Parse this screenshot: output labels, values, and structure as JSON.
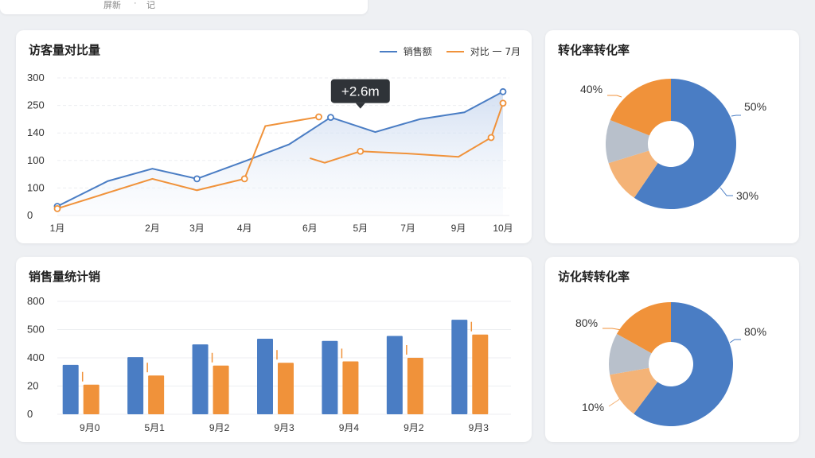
{
  "topbar": {
    "crumbs": [
      "屏新",
      "·",
      "记"
    ]
  },
  "colors": {
    "blue": "#4a7dc4",
    "orange": "#f0923a",
    "grey": "#b8c0cb",
    "light_orange": "#f4b377"
  },
  "line_card": {
    "title": "访客量对比量",
    "legend": [
      {
        "label": "销售额",
        "color": "#4a7dc4"
      },
      {
        "label": "对比 一 7月",
        "color": "#f0923a"
      }
    ],
    "tooltip": "+2.6m"
  },
  "bar_card": {
    "title": "销售量统计销"
  },
  "pie1_card": {
    "title": "转化率转化率"
  },
  "pie2_card": {
    "title": "访化转转化率"
  },
  "chart_data": [
    {
      "type": "line",
      "title": "访客量对比量",
      "x_tick_labels": [
        "1月",
        "2月",
        "3月",
        "4月",
        "6月",
        "5月",
        "7月",
        "9月",
        "10月"
      ],
      "y_tick_labels": [
        "0",
        "100",
        "100",
        "140",
        "250",
        "300"
      ],
      "ylim": [
        0,
        300
      ],
      "grid": true,
      "legend_position": "top-right",
      "series": [
        {
          "name": "销售额",
          "color": "#4a7dc4",
          "x": [
            0,
            1.7,
            3.2,
            4.7,
            6.3,
            7.8,
            9.2,
            10.7,
            12.2,
            13.7,
            15.0
          ],
          "y": [
            20,
            75,
            102,
            80,
            118,
            155,
            214,
            182,
            210,
            225,
            270
          ],
          "markers": [
            0,
            3,
            6,
            10
          ]
        },
        {
          "name": "对比 一 7月",
          "color": "#f0923a",
          "x": [
            0,
            3.2,
            4.7,
            6.3,
            7.0,
            8.8
          ],
          "y": [
            15,
            80,
            55,
            80,
            195,
            215
          ],
          "markers": [
            0,
            3,
            5
          ]
        },
        {
          "name": "对比 一 7月",
          "color": "#f0923a",
          "dashed": true,
          "x": [
            8.5,
            9.0,
            10.2,
            11.8,
            13.5,
            14.6,
            15.0
          ],
          "y": [
            125,
            115,
            140,
            135,
            128,
            170,
            245
          ],
          "markers": [
            2,
            5,
            6
          ]
        }
      ],
      "x_tick_positions": [
        0,
        3.2,
        4.7,
        6.3,
        8.5,
        10.2,
        11.8,
        13.5,
        15.0
      ],
      "xlim": [
        0,
        15
      ],
      "annotations": [
        {
          "text": "+2.6m",
          "x": 10.2,
          "y": 214
        }
      ]
    },
    {
      "type": "bar",
      "title": "销售量统计销",
      "categories": [
        "9月0",
        "5月1",
        "9月2",
        "9月3",
        "9月4",
        "9月2",
        "9月3"
      ],
      "y_tick_labels": [
        "0",
        "20",
        "400",
        "500",
        "800"
      ],
      "ylim": [
        0,
        800
      ],
      "grid": true,
      "series": [
        {
          "name": "",
          "color": "#4a7dc4",
          "values": [
            350,
            405,
            495,
            535,
            520,
            555,
            670
          ]
        },
        {
          "name": "",
          "color": "#f0923a",
          "values": [
            210,
            275,
            345,
            365,
            375,
            400,
            565
          ]
        }
      ]
    },
    {
      "type": "pie",
      "title": "转化率转化率",
      "donut": true,
      "slices": [
        {
          "value": 50,
          "color": "#4a7dc4"
        },
        {
          "value": 9,
          "color": "#f4b377"
        },
        {
          "value": 9,
          "color": "#b8c0cb"
        },
        {
          "value": 16,
          "color": "#f0923a"
        }
      ],
      "slice_labels": [
        "50%",
        "30%",
        "40%"
      ]
    },
    {
      "type": "pie",
      "title": "访化转转化率",
      "donut": true,
      "slices": [
        {
          "value": 50,
          "color": "#4a7dc4"
        },
        {
          "value": 10,
          "color": "#f4b377"
        },
        {
          "value": 9,
          "color": "#b8c0cb"
        },
        {
          "value": 14,
          "color": "#f0923a"
        }
      ],
      "slice_labels": [
        "80%",
        "10%",
        "80%"
      ]
    }
  ]
}
